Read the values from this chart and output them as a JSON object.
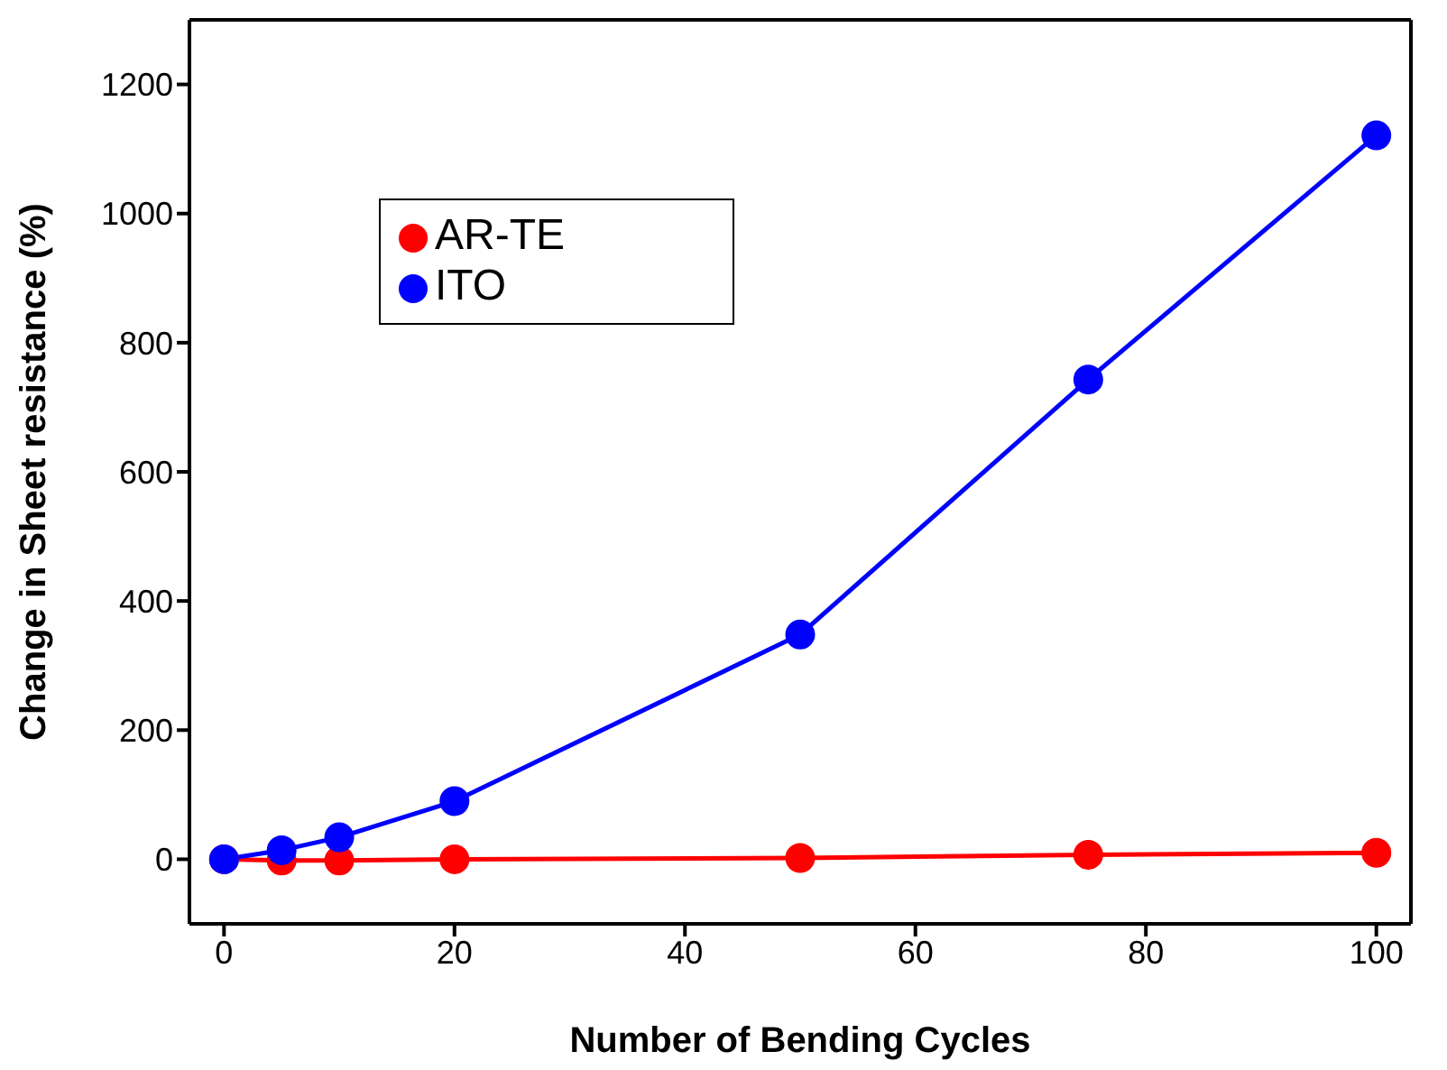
{
  "chart_data": {
    "type": "line",
    "xlabel": "Number of Bending Cycles",
    "ylabel": "Change in Sheet resistance (%)",
    "x": [
      0,
      5,
      10,
      20,
      50,
      75,
      100
    ],
    "series": [
      {
        "name": "AR-TE",
        "color": "#ff0000",
        "values": [
          0,
          -2,
          -2,
          0,
          2,
          7,
          10
        ]
      },
      {
        "name": "ITO",
        "color": "#0000ff",
        "values": [
          0,
          14,
          34,
          90,
          348,
          743,
          1121
        ]
      }
    ],
    "xlim": [
      -3,
      103
    ],
    "xticks": [
      0,
      20,
      40,
      60,
      80,
      100
    ],
    "ylim": [
      -100,
      1300
    ],
    "yticks": [
      0,
      200,
      400,
      600,
      800,
      1000,
      1200
    ],
    "grid": false,
    "legend": "top left",
    "marker": "circle",
    "line_style": "solid"
  }
}
